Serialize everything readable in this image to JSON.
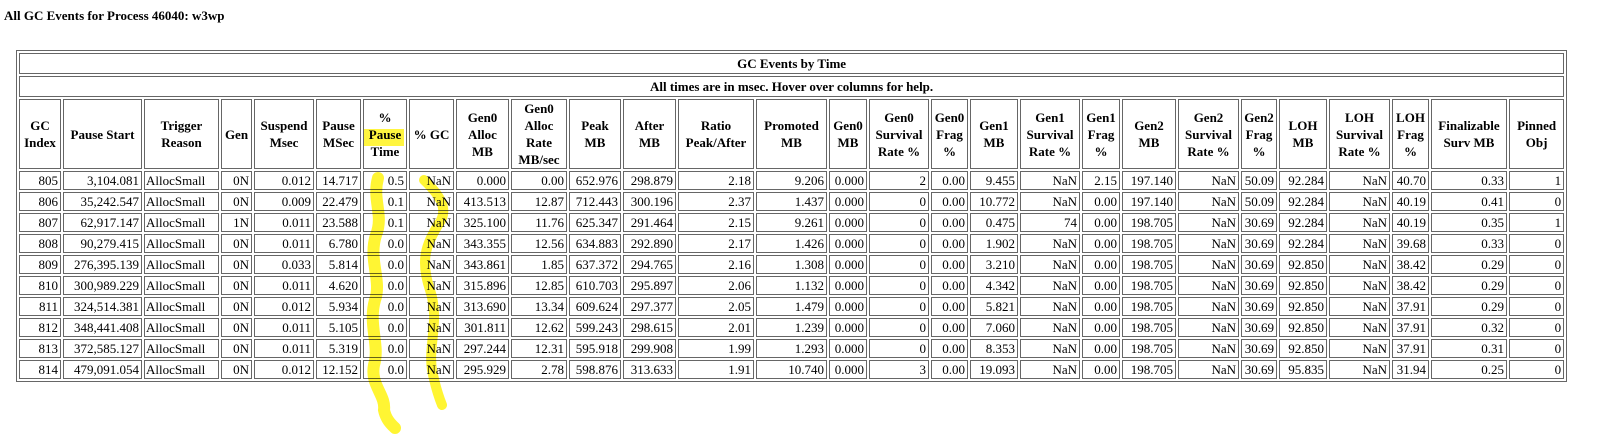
{
  "title": "All GC Events for Process 46040: w3wp",
  "table": {
    "caption": "GC Events by Time",
    "note": "All times are in msec. Hover over columns for help.",
    "headers": [
      [
        "GC",
        "Index"
      ],
      [
        "Pause Start"
      ],
      [
        "Trigger",
        "Reason"
      ],
      [
        "Gen"
      ],
      [
        "Suspend",
        "Msec"
      ],
      [
        "Pause",
        "MSec"
      ],
      [
        "%",
        "Pause",
        "Time"
      ],
      [
        "% GC"
      ],
      [
        "Gen0",
        "Alloc",
        "MB"
      ],
      [
        "Gen0",
        "Alloc",
        "Rate",
        "MB/sec"
      ],
      [
        "Peak",
        "MB"
      ],
      [
        "After",
        "MB"
      ],
      [
        "Ratio",
        "Peak/After"
      ],
      [
        "Promoted",
        "MB"
      ],
      [
        "Gen0",
        "MB"
      ],
      [
        "Gen0",
        "Survival",
        "Rate %"
      ],
      [
        "Gen0",
        "Frag",
        "%"
      ],
      [
        "Gen1",
        "MB"
      ],
      [
        "Gen1",
        "Survival",
        "Rate %"
      ],
      [
        "Gen1",
        "Frag",
        "%"
      ],
      [
        "Gen2",
        "MB"
      ],
      [
        "Gen2",
        "Survival",
        "Rate %"
      ],
      [
        "Gen2",
        "Frag",
        "%"
      ],
      [
        "LOH",
        "MB"
      ],
      [
        "LOH",
        "Survival",
        "Rate %"
      ],
      [
        "LOH",
        "Frag",
        "%"
      ],
      [
        "Finalizable",
        "Surv MB"
      ],
      [
        "Pinned",
        "Obj"
      ]
    ],
    "rows": [
      [
        "805",
        "3,104.081",
        "AllocSmall",
        "0N",
        "0.012",
        "14.717",
        "0.5",
        "NaN",
        "0.000",
        "0.00",
        "652.976",
        "298.879",
        "2.18",
        "9.206",
        "0.000",
        "2",
        "0.00",
        "9.455",
        "NaN",
        "2.15",
        "197.140",
        "NaN",
        "50.09",
        "92.284",
        "NaN",
        "40.70",
        "0.33",
        "1"
      ],
      [
        "806",
        "35,242.547",
        "AllocSmall",
        "0N",
        "0.009",
        "22.479",
        "0.1",
        "NaN",
        "413.513",
        "12.87",
        "712.443",
        "300.196",
        "2.37",
        "1.437",
        "0.000",
        "0",
        "0.00",
        "10.772",
        "NaN",
        "0.00",
        "197.140",
        "NaN",
        "50.09",
        "92.284",
        "NaN",
        "40.19",
        "0.41",
        "0"
      ],
      [
        "807",
        "62,917.147",
        "AllocSmall",
        "1N",
        "0.011",
        "23.588",
        "0.1",
        "NaN",
        "325.100",
        "11.76",
        "625.347",
        "291.464",
        "2.15",
        "9.261",
        "0.000",
        "0",
        "0.00",
        "0.475",
        "74",
        "0.00",
        "198.705",
        "NaN",
        "30.69",
        "92.284",
        "NaN",
        "40.19",
        "0.35",
        "1"
      ],
      [
        "808",
        "90,279.415",
        "AllocSmall",
        "0N",
        "0.011",
        "6.780",
        "0.0",
        "NaN",
        "343.355",
        "12.56",
        "634.883",
        "292.890",
        "2.17",
        "1.426",
        "0.000",
        "0",
        "0.00",
        "1.902",
        "NaN",
        "0.00",
        "198.705",
        "NaN",
        "30.69",
        "92.284",
        "NaN",
        "39.68",
        "0.33",
        "0"
      ],
      [
        "809",
        "276,395.139",
        "AllocSmall",
        "0N",
        "0.033",
        "5.814",
        "0.0",
        "NaN",
        "343.861",
        "1.85",
        "637.372",
        "294.765",
        "2.16",
        "1.308",
        "0.000",
        "0",
        "0.00",
        "3.210",
        "NaN",
        "0.00",
        "198.705",
        "NaN",
        "30.69",
        "92.850",
        "NaN",
        "38.42",
        "0.29",
        "0"
      ],
      [
        "810",
        "300,989.229",
        "AllocSmall",
        "0N",
        "0.011",
        "4.620",
        "0.0",
        "NaN",
        "315.896",
        "12.85",
        "610.703",
        "295.897",
        "2.06",
        "1.132",
        "0.000",
        "0",
        "0.00",
        "4.342",
        "NaN",
        "0.00",
        "198.705",
        "NaN",
        "30.69",
        "92.850",
        "NaN",
        "38.42",
        "0.29",
        "0"
      ],
      [
        "811",
        "324,514.381",
        "AllocSmall",
        "0N",
        "0.012",
        "5.934",
        "0.0",
        "NaN",
        "313.690",
        "13.34",
        "609.624",
        "297.377",
        "2.05",
        "1.479",
        "0.000",
        "0",
        "0.00",
        "5.821",
        "NaN",
        "0.00",
        "198.705",
        "NaN",
        "30.69",
        "92.850",
        "NaN",
        "37.91",
        "0.29",
        "0"
      ],
      [
        "812",
        "348,441.408",
        "AllocSmall",
        "0N",
        "0.011",
        "5.105",
        "0.0",
        "NaN",
        "301.811",
        "12.62",
        "599.243",
        "298.615",
        "2.01",
        "1.239",
        "0.000",
        "0",
        "0.00",
        "7.060",
        "NaN",
        "0.00",
        "198.705",
        "NaN",
        "30.69",
        "92.850",
        "NaN",
        "37.91",
        "0.32",
        "0"
      ],
      [
        "813",
        "372,585.127",
        "AllocSmall",
        "0N",
        "0.011",
        "5.319",
        "0.0",
        "NaN",
        "297.244",
        "12.31",
        "595.918",
        "299.908",
        "1.99",
        "1.293",
        "0.000",
        "0",
        "0.00",
        "8.353",
        "NaN",
        "0.00",
        "198.705",
        "NaN",
        "30.69",
        "92.850",
        "NaN",
        "37.91",
        "0.31",
        "0"
      ],
      [
        "814",
        "479,091.054",
        "AllocSmall",
        "0N",
        "0.012",
        "12.152",
        "0.0",
        "NaN",
        "295.929",
        "2.78",
        "598.876",
        "313.633",
        "1.91",
        "10.740",
        "0.000",
        "3",
        "0.00",
        "19.093",
        "NaN",
        "0.00",
        "198.705",
        "NaN",
        "30.69",
        "95.835",
        "NaN",
        "31.94",
        "0.25",
        "0"
      ]
    ]
  }
}
